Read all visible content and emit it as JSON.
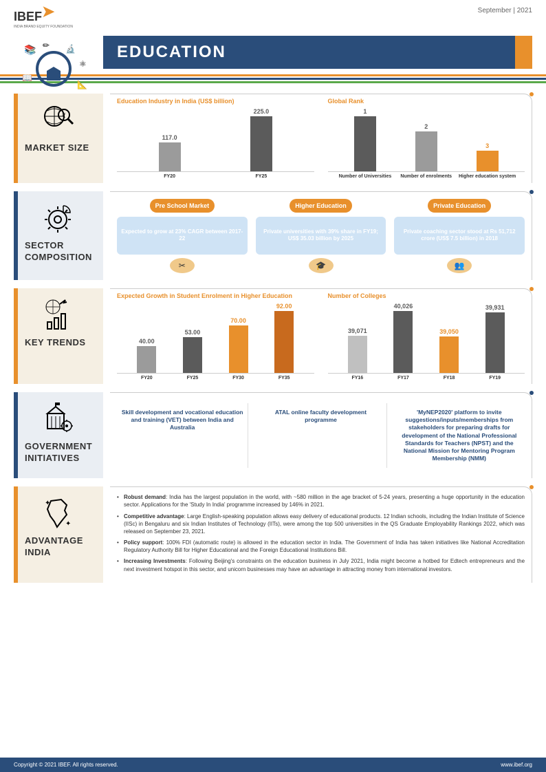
{
  "meta": {
    "date": "September | 2021",
    "logo": "IBEF",
    "logo_sub": "INDIA BRAND EQUITY FOUNDATION",
    "title": "EDUCATION"
  },
  "colors": {
    "orange": "#e8902c",
    "blue": "#2a4d7a",
    "gray": "#9b9b9b",
    "dgray": "#5b5b5b",
    "lgray": "#c0c0c0"
  },
  "sections": {
    "market": {
      "label": "MARKET SIZE",
      "chart1": {
        "title": "Education Industry in India (US$ billion)",
        "cats": [
          "FY20",
          "FY25"
        ],
        "vals": [
          117.0,
          225.0
        ],
        "colors": [
          "#9b9b9b",
          "#5b5b5b"
        ],
        "ymax": 225
      },
      "chart2": {
        "title": "Global Rank",
        "cats": [
          "Number of Universities",
          "Number of enrolments",
          "Higher education system"
        ],
        "vals": [
          1,
          2,
          3
        ],
        "heights": [
          85,
          62,
          32
        ],
        "colors": [
          "#5b5b5b",
          "#9b9b9b",
          "#e8902c"
        ]
      }
    },
    "sector": {
      "label": "SECTOR COMPOSITION",
      "pills": [
        {
          "head": "Pre School Market",
          "body": "Expected to grow at 23% CAGR between 2017-22",
          "icon": "✂"
        },
        {
          "head": "Higher Education",
          "body": "Private universities with 39% share in FY19; US$ 35.03 billion by 2025",
          "icon": "🎓"
        },
        {
          "head": "Private Education",
          "body": "Private coaching sector stood at Rs 51,712 crore (US$ 7.5 billion) in 2018",
          "icon": "👥"
        }
      ]
    },
    "trends": {
      "label": "KEY TRENDS",
      "chart1": {
        "title": "Expected Growth in Student Enrolment in Higher Education",
        "cats": [
          "FY20",
          "FY25",
          "FY30",
          "FY35"
        ],
        "vals": [
          "40.00",
          "53.00",
          "70.00",
          "92.00"
        ],
        "heights": [
          40,
          53,
          70,
          92
        ],
        "colors": [
          "#9b9b9b",
          "#5b5b5b",
          "#e8902c",
          "#c86a1e"
        ]
      },
      "chart2": {
        "title": "Number of Colleges",
        "cats": [
          "FY16",
          "FY17",
          "FY18",
          "FY19"
        ],
        "vals": [
          "39,071",
          "40,026",
          "39,050",
          "39,931"
        ],
        "heights": [
          55,
          92,
          54,
          90
        ],
        "colors": [
          "#c0c0c0",
          "#5b5b5b",
          "#e8902c",
          "#5b5b5b"
        ]
      }
    },
    "gov": {
      "label": "GOVERNMENT INITIATIVES",
      "items": [
        "Skill development and vocational education and training (VET) between India and Australia",
        "ATAL online faculty development programme",
        "'MyNEP2020' platform to invite suggestions/inputs/memberships from stakeholders for preparing drafts for development of the National Professional Standards for Teachers (NPST) and the National Mission for Mentoring Program Membership (NMM)"
      ]
    },
    "adv": {
      "label": "ADVANTAGE INDIA",
      "items": [
        {
          "b": "Robust demand",
          "t": ": India has the largest population in the world, with ~580 million in the age bracket of 5-24 years, presenting a huge opportunity in the education sector. Applications for the 'Study In India' programme increased by 146% in 2021."
        },
        {
          "b": "Competitive advantage",
          "t": ": Large English-speaking population allows easy delivery of educational products. 12 Indian schools, including the Indian Institute of Science (IISc) in Bengaluru and six Indian Institutes of Technology (IITs), were among the top 500 universities in the QS Graduate Employability Rankings 2022, which was released on September 23, 2021."
        },
        {
          "b": "Policy support",
          "t": ": 100% FDI (automatic route) is allowed in the education sector in India. The Government of India has taken initiatives like National Accreditation Regulatory Authority Bill for Higher Educational and the Foreign Educational Institutions Bill."
        },
        {
          "b": "Increasing Investments",
          "t": ": Following Beijing's constraints on the education business in July 2021, India might become a hotbed for Edtech entrepreneurs and the next investment hotspot in this sector, and unicorn businesses may have an advantage in attracting money from international investors."
        }
      ]
    }
  },
  "footer": {
    "left": "Copyright © 2021 IBEF. All rights reserved.",
    "right": "www.ibef.org"
  }
}
